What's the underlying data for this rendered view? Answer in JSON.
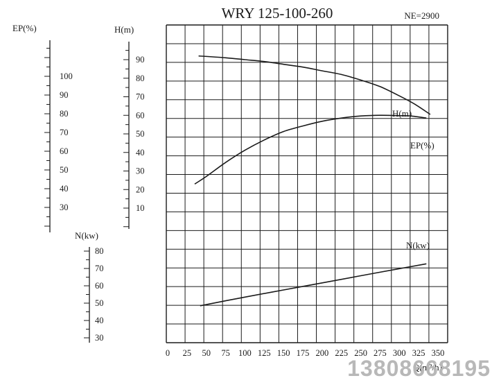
{
  "chart_data": {
    "type": "line",
    "title": "WRY 125-100-260",
    "subtitle": "NE=2900",
    "xlabel": "Q(m³/h)",
    "x_ticks": [
      0,
      25,
      50,
      75,
      100,
      125,
      150,
      175,
      200,
      225,
      250,
      275,
      300,
      325,
      350
    ],
    "xlim": [
      0,
      350
    ],
    "grid": true,
    "axes": {
      "ep": {
        "label": "EP(%)",
        "ticks": [
          30,
          40,
          50,
          60,
          70,
          80,
          90,
          100
        ],
        "range": [
          20,
          115
        ]
      },
      "h": {
        "label": "H(m)",
        "ticks": [
          10,
          20,
          30,
          40,
          50,
          60,
          70,
          80,
          90
        ],
        "range": [
          0,
          95
        ]
      },
      "n": {
        "label": "N(kw)",
        "ticks": [
          30,
          40,
          50,
          60,
          70,
          80
        ],
        "range": [
          27,
          81
        ]
      }
    },
    "series": [
      {
        "name": "H(m)",
        "axis": "h",
        "x": [
          40,
          75,
          100,
          125,
          150,
          175,
          200,
          225,
          250,
          275,
          300,
          320,
          340
        ],
        "y": [
          92,
          91,
          90,
          89,
          87.5,
          86,
          84,
          82,
          79,
          75.5,
          70.5,
          66,
          60.5
        ]
      },
      {
        "name": "EP(%)",
        "axis": "ep",
        "x": [
          35,
          50,
          75,
          100,
          125,
          150,
          175,
          200,
          225,
          250,
          275,
          300,
          315,
          335
        ],
        "y": [
          42.5,
          46.5,
          54,
          60.5,
          66,
          70.5,
          73.5,
          76,
          77.7,
          78.8,
          79.2,
          79,
          78.8,
          77.7
        ]
      },
      {
        "name": "N(kw)",
        "axis": "n",
        "x": [
          42,
          100,
          150,
          200,
          250,
          300,
          335
        ],
        "y": [
          48.5,
          53.5,
          57.6,
          61.7,
          65.8,
          69.9,
          72.7
        ]
      }
    ]
  },
  "watermark": "13808668195",
  "colors": {
    "line": "#1a1a1a",
    "grid": "#1a1a1a",
    "watermark": "#b8b8b8"
  }
}
